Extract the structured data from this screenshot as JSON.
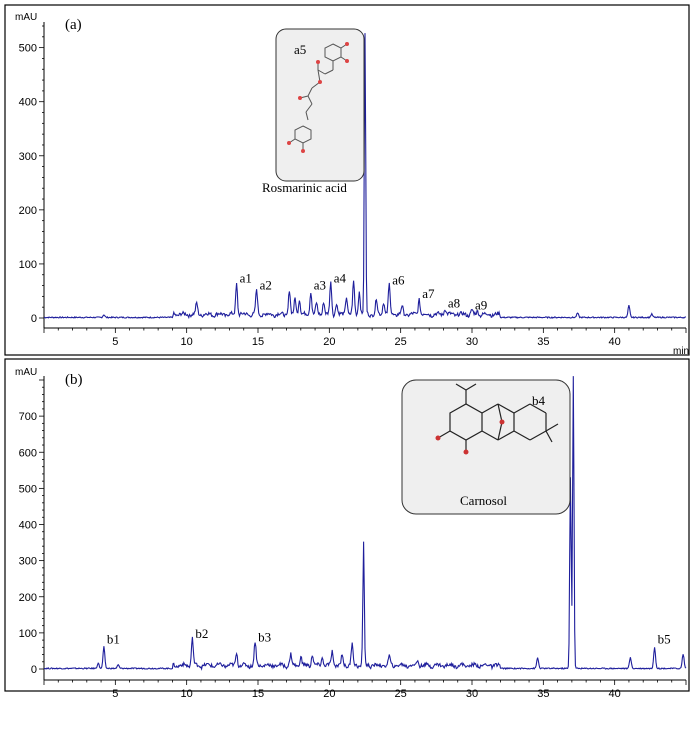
{
  "chart_data": [
    {
      "type": "line",
      "panel_label": "(a)",
      "yunit": "mAU",
      "xunit": "min",
      "xlim": [
        0,
        45
      ],
      "ylim": [
        0,
        540
      ],
      "yticks": [
        0,
        100,
        200,
        300,
        400,
        500
      ],
      "xticks": [
        5,
        10,
        15,
        20,
        25,
        30,
        35,
        40
      ],
      "line_color": "#1f1f9c",
      "series": [
        {
          "x": [
            4.2,
            10.7,
            13.5,
            14.9,
            17.2,
            17.6,
            17.9,
            18.7,
            19.1,
            19.6,
            20.1,
            20.5,
            21.2,
            21.7,
            22.1,
            22.5,
            23.3,
            23.8,
            24.2,
            25.1,
            26.3,
            28.1,
            30.0,
            30.4,
            37.4,
            41.0,
            42.6
          ],
          "y": [
            5,
            20,
            58,
            45,
            45,
            30,
            30,
            45,
            20,
            25,
            58,
            22,
            35,
            60,
            45,
            520,
            28,
            25,
            55,
            15,
            30,
            12,
            8,
            6,
            8,
            22,
            6
          ]
        }
      ],
      "peak_labels": [
        {
          "text": "a1",
          "x": 13.5,
          "y": 58
        },
        {
          "text": "a2",
          "x": 14.9,
          "y": 45
        },
        {
          "text": "a3",
          "x": 18.7,
          "y": 45
        },
        {
          "text": "a4",
          "x": 20.1,
          "y": 58
        },
        {
          "text": "a6",
          "x": 24.2,
          "y": 55
        },
        {
          "text": "a7",
          "x": 26.3,
          "y": 30
        },
        {
          "text": "a8",
          "x": 28.1,
          "y": 12
        },
        {
          "text": "a9",
          "x": 30.0,
          "y": 8
        }
      ],
      "inset": {
        "label": "a5",
        "caption": "Rosmarinic acid"
      }
    },
    {
      "type": "line",
      "panel_label": "(b)",
      "yunit": "mAU",
      "xunit": "min",
      "xlim": [
        0,
        45
      ],
      "ylim": [
        0,
        800
      ],
      "yticks": [
        0,
        100,
        200,
        300,
        400,
        500,
        600,
        700
      ],
      "xticks": [
        5,
        10,
        15,
        20,
        25,
        30,
        35,
        40
      ],
      "line_color": "#1f1f9c",
      "series": [
        {
          "x": [
            3.8,
            4.2,
            5.2,
            10.4,
            13.5,
            14.8,
            17.3,
            18.0,
            18.8,
            19.5,
            20.2,
            20.9,
            21.6,
            22.4,
            24.2,
            26.2,
            34.6,
            36.9,
            37.1,
            41.1,
            42.8,
            44.8
          ],
          "y": [
            15,
            60,
            10,
            75,
            35,
            65,
            30,
            25,
            30,
            25,
            40,
            30,
            60,
            340,
            25,
            15,
            30,
            530,
            810,
            30,
            60,
            40
          ]
        }
      ],
      "peak_labels": [
        {
          "text": "b1",
          "x": 4.2,
          "y": 60
        },
        {
          "text": "b2",
          "x": 10.4,
          "y": 75
        },
        {
          "text": "b3",
          "x": 14.8,
          "y": 65
        },
        {
          "text": "b5",
          "x": 42.8,
          "y": 60
        }
      ],
      "inset": {
        "label": "b4",
        "caption": "Carnosol"
      }
    }
  ]
}
